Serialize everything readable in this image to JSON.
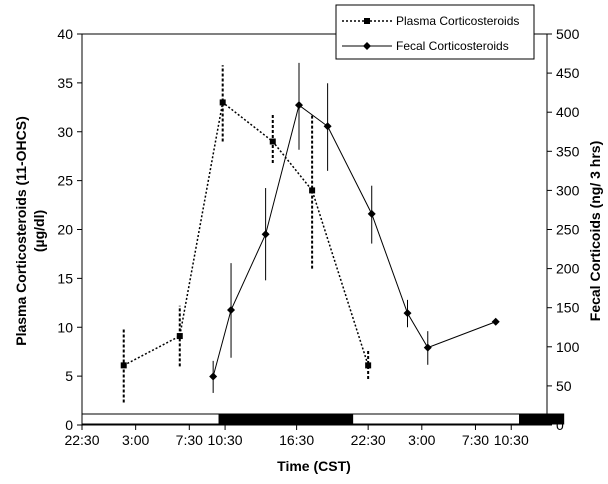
{
  "chart_data": {
    "type": "line",
    "xlabel": "Time (CST)",
    "ylabel_left_lines": [
      "Plasma Corticosteroids (11-OHCS)",
      "(µg/dl)"
    ],
    "ylabel_right": "Fecal Corticoids (ng/ 3 hrs)",
    "x_tick_labels": [
      "22:30",
      "3:00",
      "7:30",
      "10:30",
      "16:30",
      "22:30",
      "3:00",
      "7:30",
      "10:30"
    ],
    "x_tick_hours": [
      -1.5,
      3,
      7.5,
      10.5,
      16.5,
      22.5,
      27,
      31.5,
      34.5
    ],
    "xlim_hours": [
      -1.5,
      37.5
    ],
    "left_axis": {
      "ylim": [
        0,
        40
      ],
      "ticks": [
        0,
        5,
        10,
        15,
        20,
        25,
        30,
        35,
        40
      ]
    },
    "right_axis": {
      "ylim": [
        0,
        500
      ],
      "ticks": [
        0,
        50,
        100,
        150,
        200,
        250,
        300,
        350,
        400,
        450,
        500
      ]
    },
    "light_dark_bar": [
      {
        "from": -1.5,
        "to": 10,
        "phase": "light"
      },
      {
        "from": 10,
        "to": 21.2,
        "phase": "dark"
      },
      {
        "from": 21.2,
        "to": 35.2,
        "phase": "light"
      },
      {
        "from": 35.2,
        "to": 38.9,
        "phase": "dark"
      }
    ],
    "series": [
      {
        "name": "Plasma Corticosteroids",
        "axis": "left",
        "marker": "square",
        "line": "dotted",
        "x": [
          2.0,
          6.7,
          10.3,
          14.5,
          17.8,
          22.5
        ],
        "y": [
          6.1,
          9.1,
          33.0,
          29.0,
          24.0,
          6.1
        ],
        "err_low": [
          2.3,
          6.0,
          29.0,
          26.8,
          16.0,
          4.7
        ],
        "err_high": [
          9.9,
          12.2,
          36.8,
          31.9,
          31.8,
          7.6
        ]
      },
      {
        "name": "Fecal Corticosteroids",
        "axis": "right",
        "marker": "diamond",
        "line": "solid",
        "x": [
          9.5,
          11.0,
          13.9,
          16.7,
          19.1,
          22.8,
          25.8,
          27.5,
          33.2
        ],
        "y": [
          62,
          147,
          244,
          409,
          382,
          270,
          143,
          99,
          132
        ],
        "err_low": [
          41,
          86,
          185,
          352,
          325,
          232,
          125,
          77,
          null
        ],
        "err_high": [
          82,
          207,
          303,
          463,
          437,
          306,
          160,
          120,
          null
        ]
      }
    ]
  }
}
